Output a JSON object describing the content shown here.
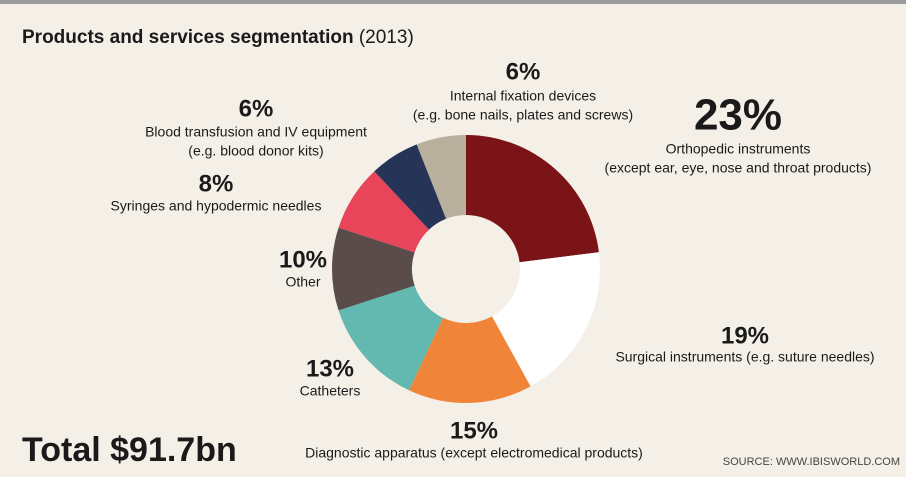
{
  "chart_data": {
    "type": "pie",
    "donut": true,
    "title": "Products and services segmentation",
    "subtitle": "(2013)",
    "categories": [
      [
        "Orthopedic instruments",
        "(except ear, eye, nose and throat products)"
      ],
      [
        "Surgical instruments (e.g. suture needles)"
      ],
      [
        "Diagnostic apparatus (except electromedical products)"
      ],
      [
        "Catheters"
      ],
      [
        "Other"
      ],
      [
        "Syringes and hypodermic needles"
      ],
      [
        "Blood transfusion and IV equipment",
        "(e.g. blood donor kits)"
      ],
      [
        "Internal fixation devices",
        "(e.g. bone nails, plates and screws)"
      ]
    ],
    "values": [
      23,
      19,
      15,
      13,
      10,
      8,
      6,
      6
    ],
    "value_labels": [
      "23%",
      "19%",
      "15%",
      "13%",
      "10%",
      "8%",
      "6%",
      "6%"
    ],
    "colors": [
      "#7b1416",
      "#ffffff",
      "#f0853a",
      "#63b9b0",
      "#5a4c4a",
      "#e8445a",
      "#253457",
      "#b8b09c"
    ],
    "total": "Total $91.7bn",
    "source": "SOURCE: WWW.IBISWORLD.COM"
  }
}
